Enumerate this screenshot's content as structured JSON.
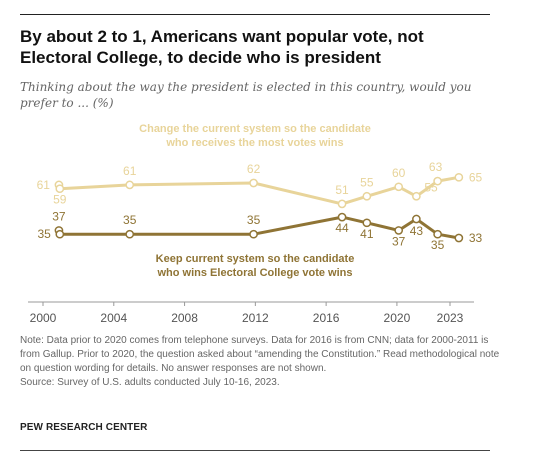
{
  "title": "By about 2 to 1, Americans want popular vote, not Electoral College, to decide who is president",
  "subtitle": "Thinking about the way the president is elected in this country, would you prefer to ... (%)",
  "notes": {
    "note": "Note: Data prior to 2020 comes from telephone surveys. Data for 2016 is from CNN; data for 2000-2011 is from Gallup. Prior to 2020, the question asked about “amending the Constitution.” Read methodological note on question wording for details. No answer responses are not shown.",
    "source": "Source: Survey of U.S. adults conducted July 10-16, 2023."
  },
  "brand": "PEW RESEARCH CENTER",
  "colors": {
    "popular_vote": "#E8D49A",
    "electoral_college": "#8F7435",
    "axis": "#999999",
    "text": "#555555"
  },
  "chart_data": {
    "type": "line",
    "xlim": [
      2000,
      2023.8
    ],
    "ylim": [
      25,
      72
    ],
    "xticks": [
      "2000",
      "2004",
      "2008",
      "2012",
      "2016",
      "2020",
      "2023"
    ],
    "grid": false,
    "legend": "direct labels",
    "series": [
      {
        "name": "Change the current system so the candidate who receives the most votes wins",
        "color": "#E8D49A",
        "x": [
          2000.9,
          2000.95,
          2004.9,
          2011.9,
          2016.9,
          2018.3,
          2020.1,
          2021.1,
          2022.3,
          2023.5
        ],
        "y": [
          61,
          59,
          61,
          62,
          51,
          55,
          60,
          55,
          63,
          65
        ],
        "labels": [
          "61",
          "59",
          "61",
          "62",
          "51",
          "55",
          "60",
          "55",
          "63",
          "65"
        ]
      },
      {
        "name": "Keep current system so the candidate who wins Electoral College vote wins",
        "color": "#8F7435",
        "x": [
          2000.9,
          2000.95,
          2004.9,
          2011.9,
          2016.9,
          2018.3,
          2020.1,
          2021.1,
          2022.3,
          2023.5
        ],
        "y": [
          37,
          35,
          35,
          35,
          44,
          41,
          37,
          43,
          35,
          33
        ],
        "labels": [
          "37",
          "35",
          "35",
          "35",
          "44",
          "41",
          "37",
          "43",
          "35",
          "33"
        ]
      }
    ]
  }
}
